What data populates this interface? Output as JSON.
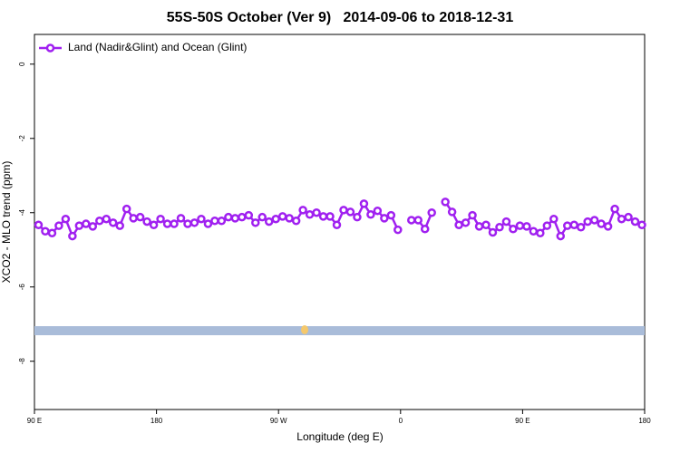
{
  "chart_data": {
    "type": "line",
    "title": "55S-50S October (Ver 9)   2014-09-06 to 2018-12-31",
    "x_label": "Longitude (deg E)",
    "y_label": "XCO2 - MLO trend (ppm)",
    "xlim": [
      90,
      540
    ],
    "xticks": [
      {
        "value": 90,
        "label": "90 E"
      },
      180,
      {
        "value": 270,
        "label": "90 W"
      },
      {
        "value": 360,
        "label": "0"
      },
      {
        "value": 450,
        "label": "90 E"
      },
      {
        "value": 540,
        "label": "180"
      }
    ],
    "ylim": [
      -9.3,
      0.8
    ],
    "yticks": [
      0,
      -2,
      -4,
      -6,
      -8
    ],
    "legend": "top-left",
    "x": [
      93,
      98,
      103,
      108,
      113,
      118,
      123,
      128,
      133,
      138,
      143,
      148,
      153,
      158,
      163,
      168,
      173,
      178,
      183,
      188,
      193,
      198,
      203,
      208,
      213,
      218,
      223,
      228,
      233,
      238,
      243,
      248,
      253,
      258,
      263,
      268,
      273,
      278,
      283,
      288,
      293,
      298,
      303,
      308,
      313,
      318,
      323,
      328,
      333,
      338,
      343,
      348,
      353,
      358,
      363,
      368,
      373,
      378,
      383,
      388,
      393,
      398,
      403,
      408,
      413,
      418,
      423,
      428,
      433,
      438,
      443,
      448,
      453,
      458,
      463,
      468,
      473,
      478,
      483,
      488,
      493,
      498,
      503,
      508,
      513,
      518,
      523,
      528,
      533,
      538
    ],
    "series": [
      {
        "name": "Land (Nadir&Glint) and Ocean (Glint)",
        "color": "#a020f0",
        "values": [
          -4.33,
          -4.5,
          -4.55,
          -4.35,
          -4.17,
          -4.63,
          -4.35,
          -4.3,
          -4.37,
          -4.22,
          -4.17,
          -4.27,
          -4.35,
          -3.9,
          -4.15,
          -4.12,
          -4.24,
          -4.33,
          -4.17,
          -4.3,
          -4.3,
          -4.15,
          -4.3,
          -4.27,
          -4.17,
          -4.3,
          -4.22,
          -4.22,
          -4.12,
          -4.15,
          -4.12,
          -4.07,
          -4.27,
          -4.12,
          -4.24,
          -4.17,
          -4.1,
          -4.15,
          -4.22,
          -3.93,
          -4.05,
          -4.0,
          -4.1,
          -4.1,
          -4.33,
          -3.93,
          -3.98,
          -4.12,
          -3.76,
          -4.05,
          -3.95,
          -4.15,
          -4.07,
          -4.46,
          null,
          -4.2,
          -4.2,
          -4.44,
          -4.0,
          null,
          -3.71,
          -3.98,
          -4.33,
          -4.27,
          -4.07,
          -4.37,
          -4.33,
          -4.53,
          -4.39,
          -4.24,
          -4.44,
          -4.35,
          -4.37,
          -4.5,
          -4.55,
          -4.35,
          -4.17,
          -4.63,
          -4.35,
          -4.33,
          -4.39,
          -4.24,
          -4.2,
          -4.3,
          -4.37,
          -3.9,
          -4.17,
          -4.12,
          -4.24,
          -4.33
        ]
      }
    ]
  }
}
